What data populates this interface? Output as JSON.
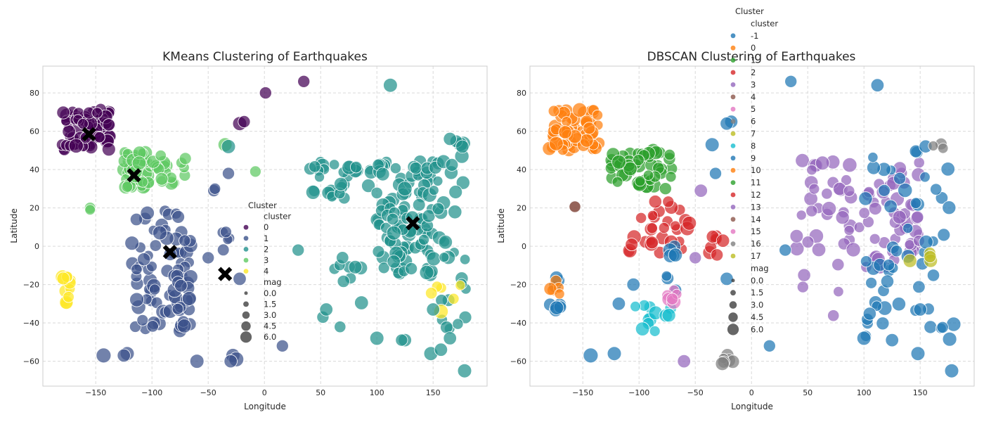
{
  "chart_data": [
    {
      "type": "scatter",
      "title": "KMeans Clustering of Earthquakes",
      "xlabel": "Longitude",
      "ylabel": "Latitude",
      "xlim": [
        -197,
        198
      ],
      "ylim": [
        -73,
        94
      ],
      "xticks": [
        -150,
        -100,
        -50,
        0,
        50,
        100,
        150
      ],
      "yticks": [
        -60,
        -40,
        -20,
        0,
        20,
        40,
        60,
        80
      ],
      "grid": true,
      "legend_position": "center",
      "legend": {
        "title": "Cluster",
        "hue_title": "cluster",
        "hue_labels": [
          "0",
          "1",
          "2",
          "3",
          "4"
        ],
        "size_title": "mag",
        "size_labels": [
          "0.0",
          "1.5",
          "3.0",
          "4.5",
          "6.0"
        ]
      },
      "cluster_colors": [
        "#440154",
        "#3b528b",
        "#21918c",
        "#5ec962",
        "#fde725"
      ],
      "centroids": [
        {
          "x": -156,
          "y": 58.5
        },
        {
          "x": -116,
          "y": 37
        },
        {
          "x": -84,
          "y": -3
        },
        {
          "x": -35,
          "y": -14.5
        },
        {
          "x": 132,
          "y": 12
        }
      ],
      "regions": [
        {
          "cluster": 0,
          "xs": [
            -180,
            -135
          ],
          "ys": [
            50,
            72
          ],
          "n": 70
        },
        {
          "cluster": 3,
          "xs": [
            -125,
            -100
          ],
          "ys": [
            30,
            50
          ],
          "n": 45
        },
        {
          "cluster": 3,
          "xs": [
            -100,
            -70
          ],
          "ys": [
            32,
            48
          ],
          "n": 18
        },
        {
          "cluster": 1,
          "xs": [
            -118,
            -72
          ],
          "ys": [
            -45,
            20
          ],
          "n": 60
        },
        {
          "cluster": 1,
          "xs": [
            -80,
            -65
          ],
          "ys": [
            -45,
            5
          ],
          "n": 25
        },
        {
          "cluster": 1,
          "xs": [
            -40,
            -25
          ],
          "ys": [
            -2,
            10
          ],
          "n": 5
        },
        {
          "cluster": 2,
          "xs": [
            40,
            100
          ],
          "ys": [
            25,
            45
          ],
          "n": 30
        },
        {
          "cluster": 2,
          "xs": [
            100,
            150
          ],
          "ys": [
            -15,
            45
          ],
          "n": 100
        },
        {
          "cluster": 2,
          "xs": [
            150,
            180
          ],
          "ys": [
            -45,
            55
          ],
          "n": 35
        },
        {
          "cluster": 2,
          "xs": [
            60,
            90
          ],
          "ys": [
            -45,
            -5
          ],
          "n": 10
        },
        {
          "cluster": 4,
          "xs": [
            -180,
            -172
          ],
          "ys": [
            -35,
            -15
          ],
          "n": 12
        },
        {
          "cluster": 4,
          "xs": [
            145,
            180
          ],
          "ys": [
            -35,
            -20
          ],
          "n": 6
        }
      ],
      "points": [
        {
          "x": 1,
          "y": 80,
          "cluster": 0,
          "mag": 4.5
        },
        {
          "x": 35,
          "y": 86,
          "cluster": 0,
          "mag": 4.5
        },
        {
          "x": -22,
          "y": 64,
          "cluster": 0,
          "mag": 5.5
        },
        {
          "x": -18,
          "y": 65,
          "cluster": 0,
          "mag": 4.5
        },
        {
          "x": 112,
          "y": 84,
          "cluster": 2,
          "mag": 5.5
        },
        {
          "x": -35,
          "y": 53,
          "cluster": 3,
          "mag": 5.5
        },
        {
          "x": -32,
          "y": 52,
          "cluster": 2,
          "mag": 5.5
        },
        {
          "x": -8,
          "y": 39,
          "cluster": 3,
          "mag": 4
        },
        {
          "x": -32,
          "y": 38,
          "cluster": 1,
          "mag": 4.5
        },
        {
          "x": -155,
          "y": 20,
          "cluster": 3,
          "mag": 4
        },
        {
          "x": -155,
          "y": 19,
          "cluster": 3,
          "mag": 3.5
        },
        {
          "x": -143,
          "y": -57,
          "cluster": 1,
          "mag": 6
        },
        {
          "x": -122,
          "y": -56,
          "cluster": 1,
          "mag": 5.5
        },
        {
          "x": -125,
          "y": -57,
          "cluster": 1,
          "mag": 5
        },
        {
          "x": -60,
          "y": -60,
          "cluster": 1,
          "mag": 5.5
        },
        {
          "x": -28,
          "y": -57,
          "cluster": 1,
          "mag": 5.5
        },
        {
          "x": -25,
          "y": -59,
          "cluster": 1,
          "mag": 6
        },
        {
          "x": -30,
          "y": -60,
          "cluster": 1,
          "mag": 5
        },
        {
          "x": 16,
          "y": -52,
          "cluster": 1,
          "mag": 4.5
        },
        {
          "x": -50,
          "y": -6,
          "cluster": 1,
          "mag": 4.5
        },
        {
          "x": -45,
          "y": 29,
          "cluster": 1,
          "mag": 4.5
        },
        {
          "x": -44,
          "y": 30,
          "cluster": 1,
          "mag": 4
        },
        {
          "x": -22,
          "y": -17,
          "cluster": 1,
          "mag": 5
        },
        {
          "x": 125,
          "y": -49,
          "cluster": 2,
          "mag": 5
        },
        {
          "x": 122,
          "y": -49,
          "cluster": 2,
          "mag": 4.5
        },
        {
          "x": 150,
          "y": -33,
          "cluster": 2,
          "mag": 5
        },
        {
          "x": 148,
          "y": -56,
          "cluster": 2,
          "mag": 5.5
        },
        {
          "x": 157,
          "y": -54,
          "cluster": 2,
          "mag": 5
        },
        {
          "x": 178,
          "y": -65,
          "cluster": 2,
          "mag": 5.5
        },
        {
          "x": 100,
          "y": -48,
          "cluster": 2,
          "mag": 5.5
        },
        {
          "x": 30,
          "y": -2,
          "cluster": 2,
          "mag": 4.5
        },
        {
          "x": 52,
          "y": -37,
          "cluster": 2,
          "mag": 4.5
        },
        {
          "x": 55,
          "y": -33,
          "cluster": 2,
          "mag": 5
        },
        {
          "x": 115,
          "y": -8,
          "cluster": 2,
          "mag": 5
        },
        {
          "x": 165,
          "y": -48,
          "cluster": 2,
          "mag": 5
        },
        {
          "x": 165,
          "y": 56,
          "cluster": 2,
          "mag": 5
        },
        {
          "x": 176,
          "y": 52,
          "cluster": 2,
          "mag": 5
        }
      ]
    },
    {
      "type": "scatter",
      "title": "DBSCAN Clustering of Earthquakes",
      "xlabel": "Longitude",
      "ylabel": "Latitude",
      "xlim": [
        -197,
        198
      ],
      "ylim": [
        -73,
        94
      ],
      "xticks": [
        -150,
        -100,
        -50,
        0,
        50,
        100,
        150
      ],
      "yticks": [
        -60,
        -40,
        -20,
        0,
        20,
        40,
        60,
        80
      ],
      "grid": true,
      "legend_position": "top-center",
      "legend": {
        "title": "Cluster",
        "hue_title": "cluster",
        "hue_labels": [
          "-1",
          "0",
          "1",
          "2",
          "3",
          "4",
          "5",
          "6",
          "7",
          "8",
          "9",
          "10",
          "11",
          "12",
          "13",
          "14",
          "15",
          "16",
          "17"
        ],
        "size_title": "mag",
        "size_labels": [
          "0.0",
          "1.5",
          "3.0",
          "4.5",
          "6.0"
        ]
      },
      "cluster_colors": [
        "#1f77b4",
        "#ff7f0e",
        "#2ca02c",
        "#d62728",
        "#9467bd",
        "#8c564b",
        "#e377c2",
        "#7f7f7f",
        "#bcbd22",
        "#17becf",
        "#1f77b4",
        "#ff7f0e",
        "#2ca02c",
        "#d62728",
        "#9467bd",
        "#8c564b",
        "#e377c2",
        "#7f7f7f",
        "#bcbd22"
      ],
      "regions": [
        {
          "cluster": "0",
          "xs": [
            -180,
            -135
          ],
          "ys": [
            50,
            72
          ],
          "n": 60
        },
        {
          "cluster": "1",
          "xs": [
            -125,
            -70
          ],
          "ys": [
            30,
            50
          ],
          "n": 55
        },
        {
          "cluster": "2",
          "xs": [
            -110,
            -55
          ],
          "ys": [
            -5,
            25
          ],
          "n": 30
        },
        {
          "cluster": "2",
          "xs": [
            -45,
            -20
          ],
          "ys": [
            -5,
            10
          ],
          "n": 8
        },
        {
          "cluster": "3",
          "xs": [
            40,
            100
          ],
          "ys": [
            -40,
            45
          ],
          "n": 40
        },
        {
          "cluster": "3",
          "xs": [
            100,
            150
          ],
          "ys": [
            -12,
            45
          ],
          "n": 50
        },
        {
          "cluster": "-1",
          "xs": [
            100,
            180
          ],
          "ys": [
            -50,
            55
          ],
          "n": 55
        },
        {
          "cluster": "-1",
          "xs": [
            -180,
            -170
          ],
          "ys": [
            -35,
            -15
          ],
          "n": 8
        },
        {
          "cluster": "-1",
          "xs": [
            -80,
            -65
          ],
          "ys": [
            -25,
            10
          ],
          "n": 8
        },
        {
          "cluster": "8",
          "xs": [
            -105,
            -70
          ],
          "ys": [
            -45,
            -30
          ],
          "n": 12
        },
        {
          "cluster": "5",
          "xs": [
            -75,
            -65
          ],
          "ys": [
            -30,
            -15
          ],
          "n": 6
        },
        {
          "cluster": "10",
          "xs": [
            -180,
            -170
          ],
          "ys": [
            -25,
            -18
          ],
          "n": 5
        },
        {
          "cluster": "16",
          "xs": [
            -30,
            -15
          ],
          "ys": [
            -62,
            -56
          ],
          "n": 6
        },
        {
          "cluster": "7",
          "xs": [
            140,
            160
          ],
          "ys": [
            -8,
            -3
          ],
          "n": 4
        },
        {
          "cluster": "4",
          "xs": [
            -160,
            -155
          ],
          "ys": [
            19,
            21
          ],
          "n": 2
        },
        {
          "cluster": "6",
          "xs": [
            160,
            180
          ],
          "ys": [
            50,
            54
          ],
          "n": 3
        }
      ],
      "points": [
        {
          "x": -18,
          "y": 65,
          "cluster": "-1",
          "mag": 5
        },
        {
          "x": -22,
          "y": 64,
          "cluster": "-1",
          "mag": 5
        },
        {
          "x": -35,
          "y": 53,
          "cluster": "-1",
          "mag": 5.5
        },
        {
          "x": -32,
          "y": 38,
          "cluster": "-1",
          "mag": 4.5
        },
        {
          "x": 35,
          "y": 86,
          "cluster": "-1",
          "mag": 4.5
        },
        {
          "x": 112,
          "y": 84,
          "cluster": "-1",
          "mag": 5
        },
        {
          "x": -143,
          "y": -57,
          "cluster": "-1",
          "mag": 6
        },
        {
          "x": -122,
          "y": -56,
          "cluster": "-1",
          "mag": 5.5
        },
        {
          "x": 16,
          "y": -52,
          "cluster": "-1",
          "mag": 4.5
        },
        {
          "x": 30,
          "y": -2,
          "cluster": "-1",
          "mag": 4.5
        },
        {
          "x": -22,
          "y": -17,
          "cluster": "-1",
          "mag": 5
        },
        {
          "x": -60,
          "y": -60,
          "cluster": "13",
          "mag": 5
        },
        {
          "x": -50,
          "y": -6,
          "cluster": "13",
          "mag": 4.5
        },
        {
          "x": 178,
          "y": -65,
          "cluster": "-1",
          "mag": 5.5
        },
        {
          "x": 150,
          "y": -33,
          "cluster": "-1",
          "mag": 5
        },
        {
          "x": 125,
          "y": -49,
          "cluster": "-1",
          "mag": 5
        },
        {
          "x": 100,
          "y": -48,
          "cluster": "-1",
          "mag": 5.5
        },
        {
          "x": 148,
          "y": -56,
          "cluster": "-1",
          "mag": 5.5
        },
        {
          "x": -118,
          "y": -30,
          "cluster": "-1",
          "mag": 5
        },
        {
          "x": -105,
          "y": -20,
          "cluster": "-1",
          "mag": 5
        },
        {
          "x": -45,
          "y": 29,
          "cluster": "13",
          "mag": 5
        }
      ]
    }
  ]
}
